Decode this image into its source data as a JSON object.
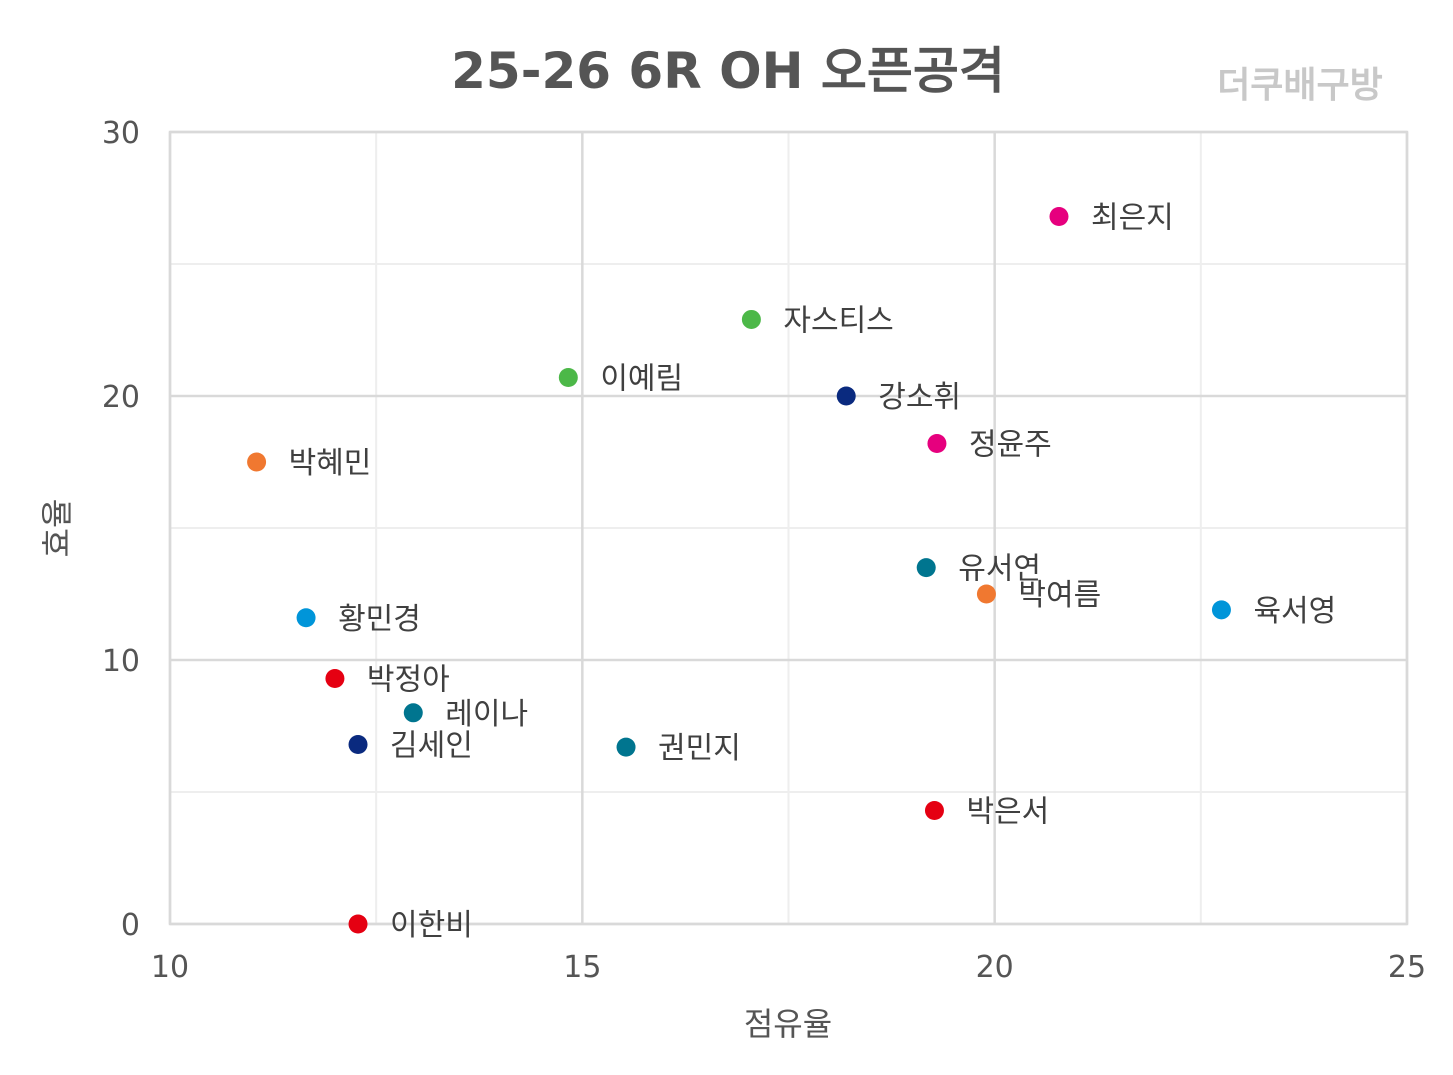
{
  "chart_data": {
    "type": "scatter",
    "title": "25-26 6R OH 오픈공격",
    "watermark": "더쿠배구방",
    "xlabel": "점유율",
    "ylabel": "효율",
    "xlim": [
      10,
      25
    ],
    "ylim": [
      0,
      30
    ],
    "x_ticks": [
      "10",
      "15",
      "20",
      "25"
    ],
    "y_ticks": [
      "0",
      "10",
      "20",
      "30"
    ],
    "grid": true,
    "points": [
      {
        "label": "최은지",
        "x": 20.78,
        "y": 26.8,
        "color": "#e6007e"
      },
      {
        "label": "자스티스",
        "x": 17.05,
        "y": 22.9,
        "color": "#4cb848"
      },
      {
        "label": "이예림",
        "x": 14.83,
        "y": 20.7,
        "color": "#4cb848"
      },
      {
        "label": "강소휘",
        "x": 18.2,
        "y": 20.0,
        "color": "#0a2a7f"
      },
      {
        "label": "정윤주",
        "x": 19.3,
        "y": 18.2,
        "color": "#e6007e"
      },
      {
        "label": "박혜민",
        "x": 11.05,
        "y": 17.5,
        "color": "#f07830"
      },
      {
        "label": "유서연",
        "x": 19.17,
        "y": 13.5,
        "color": "#00758f"
      },
      {
        "label": "박여름",
        "x": 19.9,
        "y": 12.5,
        "color": "#f07830"
      },
      {
        "label": "육서영",
        "x": 22.75,
        "y": 11.9,
        "color": "#0095d9"
      },
      {
        "label": "황민경",
        "x": 11.65,
        "y": 11.6,
        "color": "#0095d9"
      },
      {
        "label": "박정아",
        "x": 12.0,
        "y": 9.3,
        "color": "#e50012"
      },
      {
        "label": "레이나",
        "x": 12.95,
        "y": 8.0,
        "color": "#00758f"
      },
      {
        "label": "김세인",
        "x": 12.28,
        "y": 6.8,
        "color": "#0a2a7f"
      },
      {
        "label": "권민지",
        "x": 15.53,
        "y": 6.7,
        "color": "#00758f"
      },
      {
        "label": "박은서",
        "x": 19.27,
        "y": 4.3,
        "color": "#e50012"
      },
      {
        "label": "이한비",
        "x": 12.28,
        "y": 0.0,
        "color": "#e50012"
      }
    ]
  }
}
